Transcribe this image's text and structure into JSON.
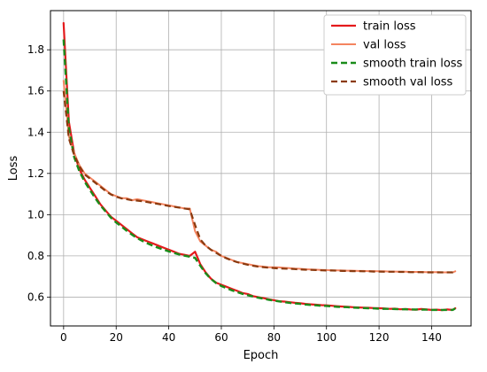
{
  "chart_data": {
    "type": "line",
    "title": "",
    "xlabel": "Epoch",
    "ylabel": "Loss",
    "xlim": [
      -5,
      155
    ],
    "ylim": [
      0.46,
      1.99
    ],
    "xticks": [
      0,
      20,
      40,
      60,
      80,
      100,
      120,
      140
    ],
    "yticks": [
      0.6,
      0.8,
      1.0,
      1.2,
      1.4,
      1.6,
      1.8
    ],
    "grid": true,
    "legend_position": "top-right",
    "x": [
      0,
      2,
      4,
      6,
      8,
      10,
      12,
      14,
      16,
      18,
      20,
      22,
      24,
      26,
      28,
      30,
      32,
      34,
      36,
      38,
      40,
      42,
      44,
      46,
      48,
      50,
      52,
      54,
      56,
      58,
      60,
      62,
      64,
      66,
      68,
      70,
      72,
      74,
      76,
      78,
      80,
      82,
      84,
      86,
      88,
      90,
      92,
      94,
      96,
      98,
      100,
      102,
      104,
      106,
      108,
      110,
      112,
      114,
      116,
      118,
      120,
      122,
      124,
      126,
      128,
      130,
      132,
      134,
      136,
      138,
      140,
      142,
      144,
      146,
      148,
      149
    ],
    "series": [
      {
        "name": "train loss",
        "color": "#e41a1c",
        "dash": "solid",
        "width": 2.2,
        "values": [
          1.93,
          1.45,
          1.3,
          1.22,
          1.17,
          1.13,
          1.09,
          1.05,
          1.02,
          0.99,
          0.97,
          0.95,
          0.93,
          0.91,
          0.89,
          0.88,
          0.87,
          0.86,
          0.85,
          0.84,
          0.83,
          0.82,
          0.81,
          0.805,
          0.8,
          0.82,
          0.76,
          0.72,
          0.69,
          0.67,
          0.66,
          0.65,
          0.64,
          0.63,
          0.62,
          0.615,
          0.605,
          0.6,
          0.595,
          0.59,
          0.585,
          0.58,
          0.578,
          0.575,
          0.572,
          0.57,
          0.567,
          0.565,
          0.563,
          0.561,
          0.56,
          0.558,
          0.556,
          0.554,
          0.553,
          0.551,
          0.55,
          0.549,
          0.548,
          0.547,
          0.546,
          0.545,
          0.543,
          0.544,
          0.541,
          0.542,
          0.54,
          0.539,
          0.542,
          0.54,
          0.538,
          0.539,
          0.537,
          0.54,
          0.538,
          0.546
        ]
      },
      {
        "name": "val loss",
        "color": "#f4845f",
        "dash": "solid",
        "width": 2.0,
        "values": [
          1.65,
          1.38,
          1.3,
          1.24,
          1.2,
          1.18,
          1.16,
          1.14,
          1.12,
          1.1,
          1.09,
          1.08,
          1.08,
          1.07,
          1.075,
          1.07,
          1.065,
          1.06,
          1.055,
          1.05,
          1.045,
          1.04,
          1.035,
          1.03,
          1.03,
          0.92,
          0.87,
          0.85,
          0.83,
          0.82,
          0.8,
          0.79,
          0.78,
          0.77,
          0.765,
          0.76,
          0.755,
          0.75,
          0.748,
          0.745,
          0.745,
          0.744,
          0.742,
          0.74,
          0.738,
          0.737,
          0.735,
          0.734,
          0.733,
          0.732,
          0.731,
          0.73,
          0.73,
          0.729,
          0.728,
          0.728,
          0.727,
          0.727,
          0.726,
          0.726,
          0.725,
          0.725,
          0.724,
          0.724,
          0.723,
          0.723,
          0.722,
          0.722,
          0.722,
          0.721,
          0.721,
          0.721,
          0.72,
          0.72,
          0.72,
          0.725
        ]
      },
      {
        "name": "smooth train loss",
        "color": "#1a8c1a",
        "dash": "dashed",
        "width": 2.4,
        "values": [
          1.85,
          1.42,
          1.28,
          1.21,
          1.16,
          1.12,
          1.08,
          1.045,
          1.015,
          0.985,
          0.962,
          0.942,
          0.922,
          0.903,
          0.886,
          0.872,
          0.86,
          0.849,
          0.839,
          0.83,
          0.822,
          0.814,
          0.807,
          0.801,
          0.796,
          0.79,
          0.752,
          0.716,
          0.688,
          0.668,
          0.654,
          0.643,
          0.633,
          0.624,
          0.616,
          0.609,
          0.603,
          0.597,
          0.592,
          0.587,
          0.583,
          0.579,
          0.575,
          0.572,
          0.569,
          0.567,
          0.564,
          0.562,
          0.56,
          0.558,
          0.557,
          0.555,
          0.553,
          0.552,
          0.551,
          0.549,
          0.548,
          0.547,
          0.546,
          0.545,
          0.544,
          0.543,
          0.543,
          0.542,
          0.541,
          0.541,
          0.54,
          0.54,
          0.539,
          0.539,
          0.538,
          0.538,
          0.538,
          0.538,
          0.538,
          0.545
        ]
      },
      {
        "name": "smooth val loss",
        "color": "#8b3a0f",
        "dash": "dashed",
        "width": 2.2,
        "values": [
          1.6,
          1.37,
          1.29,
          1.235,
          1.195,
          1.175,
          1.155,
          1.135,
          1.115,
          1.098,
          1.087,
          1.079,
          1.075,
          1.07,
          1.068,
          1.065,
          1.061,
          1.056,
          1.052,
          1.047,
          1.042,
          1.038,
          1.034,
          1.03,
          1.026,
          0.95,
          0.88,
          0.85,
          0.83,
          0.815,
          0.8,
          0.788,
          0.778,
          0.77,
          0.763,
          0.757,
          0.752,
          0.748,
          0.745,
          0.743,
          0.741,
          0.739,
          0.738,
          0.737,
          0.736,
          0.734,
          0.733,
          0.732,
          0.731,
          0.73,
          0.729,
          0.729,
          0.728,
          0.727,
          0.727,
          0.726,
          0.726,
          0.725,
          0.725,
          0.724,
          0.724,
          0.723,
          0.723,
          0.723,
          0.722,
          0.722,
          0.721,
          0.721,
          0.721,
          0.72,
          0.72,
          0.72,
          0.72,
          0.72,
          0.72,
          0.725
        ]
      }
    ]
  }
}
